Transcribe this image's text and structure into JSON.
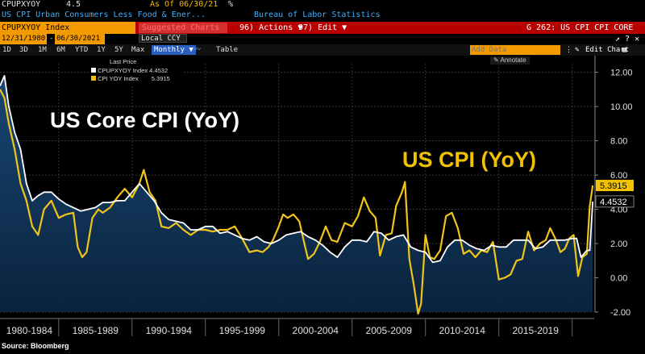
{
  "header": {
    "ticker": "CPUPXYOY",
    "last_value": "4.5",
    "as_of": "As Of 06/30/21",
    "percent_sign": "%",
    "description": "US CPI Urban Consumers Less Food & Ener...",
    "source": "Bureau of Labor Statistics"
  },
  "toolbar": {
    "index_label": "CPUPXYOY Index",
    "suggested_label": "Suggested Charts",
    "actions_label": "96) Actions ▼",
    "edit_label": "97) Edit ▼",
    "page_title": "G 262: US CPI CPI CORE",
    "window_controls": "↗ ? ✕",
    "date_from": "12/31/1980",
    "date_to": "06/30/2021",
    "currency": "Local CCY",
    "periods": [
      "1D",
      "3D",
      "1M",
      "6M",
      "YTD",
      "1Y",
      "5Y",
      "Max"
    ],
    "frequency": "Monthly",
    "table_label": "Table",
    "add_data_placeholder": "Add Data",
    "annotate_label": "Annotate",
    "edit_chart_label": "Edit Chart",
    "edit_chart_icon": "gear-icon"
  },
  "legend": {
    "title": "Last Price",
    "items": [
      {
        "name": "CPUPXYOY Index",
        "value": "4.4532",
        "color": "#ffffff"
      },
      {
        "name": "CPI YOY Index",
        "value": "5.3915",
        "color": "#f2c200"
      }
    ]
  },
  "annotations": {
    "core_title": "US Core CPI (YoY)",
    "cpi_title": "US CPI (YoY)"
  },
  "footer": {
    "source": "Source: Bloomberg"
  },
  "colors": {
    "core": "#ffffff",
    "cpi": "#f0c419",
    "area": "#0b2a4a",
    "highlight_core": "#ffffff",
    "highlight_cpi": "#f2c200"
  },
  "chart_data": {
    "type": "line",
    "title": "US Core CPI (YoY) vs US CPI (YoY)",
    "xlabel": "",
    "ylabel": "%",
    "xlim": [
      1981.0,
      2021.5
    ],
    "ylim": [
      -2,
      12.5
    ],
    "y_ticks": [
      12.0,
      10.0,
      8.0,
      6.0,
      4.0,
      2.0,
      0.0,
      -2.0
    ],
    "y_tick_labels": [
      "12.00",
      "10.00",
      "8.00",
      "6.00",
      "4.00",
      "2.00",
      "0.00",
      "-2.00"
    ],
    "x_tick_labels": [
      {
        "label": "1980-1984",
        "center": 1983.0
      },
      {
        "label": "1985-1989",
        "center": 1987.5
      },
      {
        "label": "1990-1994",
        "center": 1992.5
      },
      {
        "label": "1995-1999",
        "center": 1997.5
      },
      {
        "label": "2000-2004",
        "center": 2002.5
      },
      {
        "label": "2005-2009",
        "center": 2007.5
      },
      {
        "label": "2010-2014",
        "center": 2012.5
      },
      {
        "label": "2015-2019",
        "center": 2017.5
      }
    ],
    "x_separators": [
      1985,
      1990,
      1995,
      2000,
      2005,
      2010,
      2015,
      2020
    ],
    "last_value_labels": [
      {
        "series": "CPI YOY Index",
        "value": 5.3915,
        "label": "5.3915"
      },
      {
        "series": "CPUPXYOY Index",
        "value": 4.4532,
        "label": "4.4532"
      }
    ],
    "series": [
      {
        "name": "CPUPXYOY Index",
        "color": "#ffffff",
        "x": [
          1981.0,
          1981.3,
          1981.6,
          1982.0,
          1982.4,
          1982.8,
          1983.2,
          1983.6,
          1984.0,
          1984.5,
          1985.0,
          1985.5,
          1986.0,
          1986.5,
          1987.0,
          1987.5,
          1988.0,
          1988.5,
          1989.0,
          1989.5,
          1990.0,
          1990.5,
          1991.0,
          1991.5,
          1992.0,
          1992.5,
          1993.0,
          1993.5,
          1994.0,
          1994.5,
          1995.0,
          1995.5,
          1996.0,
          1996.5,
          1997.0,
          1997.5,
          1998.0,
          1998.5,
          1999.0,
          1999.5,
          2000.0,
          2000.5,
          2001.0,
          2001.5,
          2002.0,
          2002.5,
          2003.0,
          2003.5,
          2004.0,
          2004.5,
          2005.0,
          2005.5,
          2006.0,
          2006.5,
          2007.0,
          2007.5,
          2008.0,
          2008.5,
          2009.0,
          2009.5,
          2010.0,
          2010.5,
          2011.0,
          2011.5,
          2012.0,
          2012.5,
          2013.0,
          2013.5,
          2014.0,
          2014.5,
          2015.0,
          2015.5,
          2016.0,
          2016.5,
          2017.0,
          2017.5,
          2018.0,
          2018.5,
          2019.0,
          2019.5,
          2020.0,
          2020.3,
          2020.6,
          2021.0,
          2021.2,
          2021.4
        ],
        "y": [
          11.2,
          11.8,
          10.0,
          8.5,
          7.5,
          5.5,
          4.5,
          4.8,
          5.0,
          5.0,
          4.6,
          4.3,
          4.1,
          3.9,
          4.0,
          4.1,
          4.4,
          4.4,
          4.5,
          4.5,
          5.0,
          5.5,
          5.0,
          4.5,
          3.8,
          3.4,
          3.3,
          3.2,
          2.8,
          2.8,
          3.0,
          3.0,
          2.6,
          2.7,
          2.5,
          2.3,
          2.2,
          2.4,
          2.1,
          2.0,
          2.2,
          2.5,
          2.6,
          2.7,
          2.4,
          2.2,
          1.9,
          1.5,
          1.2,
          1.8,
          2.2,
          2.2,
          2.1,
          2.7,
          2.6,
          2.2,
          2.4,
          2.5,
          1.8,
          1.6,
          1.5,
          0.9,
          1.0,
          1.8,
          2.2,
          2.2,
          1.9,
          1.7,
          1.6,
          1.9,
          1.8,
          1.8,
          2.2,
          2.2,
          2.2,
          1.7,
          1.8,
          2.2,
          2.2,
          2.2,
          2.3,
          2.3,
          1.2,
          1.6,
          1.6,
          4.4532
        ]
      },
      {
        "name": "CPI YOY Index",
        "color": "#f2c200",
        "x": [
          1981.0,
          1981.3,
          1981.6,
          1982.0,
          1982.4,
          1982.8,
          1983.2,
          1983.6,
          1984.0,
          1984.5,
          1985.0,
          1985.5,
          1986.0,
          1986.3,
          1986.6,
          1986.9,
          1987.3,
          1987.7,
          1988.0,
          1988.5,
          1989.0,
          1989.5,
          1990.0,
          1990.5,
          1990.8,
          1991.2,
          1991.6,
          1992.0,
          1992.5,
          1993.0,
          1993.5,
          1994.0,
          1994.5,
          1995.0,
          1995.5,
          1996.0,
          1996.5,
          1997.0,
          1997.5,
          1998.0,
          1998.5,
          1998.9,
          1999.3,
          1999.6,
          2000.0,
          2000.3,
          2000.6,
          2001.0,
          2001.4,
          2001.8,
          2002.0,
          2002.4,
          2002.8,
          2003.2,
          2003.6,
          2004.0,
          2004.5,
          2005.0,
          2005.4,
          2005.8,
          2006.2,
          2006.6,
          2006.9,
          2007.3,
          2007.7,
          2008.0,
          2008.4,
          2008.6,
          2008.9,
          2009.2,
          2009.5,
          2009.7,
          2010.0,
          2010.3,
          2010.6,
          2011.0,
          2011.4,
          2011.8,
          2012.2,
          2012.6,
          2013.0,
          2013.4,
          2013.8,
          2014.2,
          2014.6,
          2015.0,
          2015.4,
          2015.8,
          2016.2,
          2016.6,
          2017.0,
          2017.4,
          2017.8,
          2018.2,
          2018.5,
          2018.9,
          2019.2,
          2019.5,
          2019.8,
          2020.1,
          2020.4,
          2020.7,
          2021.0,
          2021.2,
          2021.4
        ],
        "y": [
          11.0,
          10.5,
          9.0,
          7.5,
          5.5,
          4.5,
          3.0,
          2.5,
          4.0,
          4.5,
          3.5,
          3.7,
          3.8,
          1.8,
          1.2,
          1.5,
          3.5,
          4.0,
          3.8,
          4.1,
          4.7,
          5.2,
          4.7,
          5.5,
          6.3,
          5.0,
          4.5,
          3.0,
          2.9,
          3.2,
          2.8,
          2.5,
          2.8,
          2.8,
          2.7,
          2.8,
          2.8,
          3.0,
          2.3,
          1.5,
          1.6,
          1.5,
          1.8,
          2.2,
          3.0,
          3.7,
          3.5,
          3.7,
          3.3,
          1.8,
          1.1,
          1.4,
          2.1,
          3.0,
          2.2,
          2.1,
          3.2,
          3.0,
          3.6,
          4.7,
          3.9,
          3.5,
          1.3,
          2.5,
          2.6,
          4.2,
          5.0,
          5.6,
          1.1,
          -0.4,
          -2.1,
          -1.5,
          2.5,
          1.2,
          1.1,
          1.6,
          3.6,
          3.8,
          2.9,
          1.4,
          1.6,
          1.2,
          1.6,
          1.5,
          2.1,
          -0.1,
          0.0,
          0.2,
          1.0,
          1.1,
          2.7,
          1.6,
          2.0,
          2.2,
          2.9,
          2.2,
          1.5,
          1.7,
          2.3,
          2.5,
          0.1,
          1.2,
          1.4,
          4.2,
          5.3915
        ]
      }
    ]
  }
}
